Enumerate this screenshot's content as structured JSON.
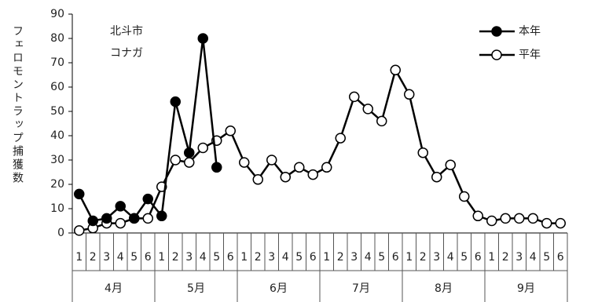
{
  "chart_data": {
    "type": "line",
    "annotations": [
      "北斗市",
      "コナガ"
    ],
    "y_label": "フェロモントラップ捕獲数",
    "categories": [
      "1",
      "2",
      "3",
      "4",
      "5",
      "6",
      "1",
      "2",
      "3",
      "4",
      "5",
      "6",
      "1",
      "2",
      "3",
      "4",
      "5",
      "6",
      "1",
      "2",
      "3",
      "4",
      "5",
      "6",
      "1",
      "2",
      "3",
      "4",
      "5",
      "6",
      "1",
      "2",
      "3",
      "4",
      "5",
      "6"
    ],
    "groups": [
      "4月",
      "5月",
      "6月",
      "7月",
      "8月",
      "9月"
    ],
    "series": [
      {
        "name": "本年",
        "color": "#000000",
        "marker": "filled",
        "values": [
          16,
          5,
          6,
          11,
          6,
          14,
          7,
          54,
          33,
          80,
          27,
          null,
          null,
          null,
          null,
          null,
          null,
          null,
          null,
          null,
          null,
          null,
          null,
          null,
          null,
          null,
          null,
          null,
          null,
          null,
          null,
          null,
          null,
          null,
          null,
          null
        ]
      },
      {
        "name": "平年",
        "color": "#000000",
        "marker": "open",
        "values": [
          1,
          2,
          4,
          4,
          6,
          6,
          19,
          30,
          29,
          35,
          38,
          42,
          29,
          22,
          30,
          23,
          27,
          24,
          27,
          39,
          56,
          51,
          46,
          67,
          57,
          33,
          23,
          28,
          15,
          7,
          5,
          6,
          6,
          6,
          4,
          4
        ]
      }
    ],
    "ylim": [
      0,
      90
    ],
    "yticks": [
      0,
      10,
      20,
      30,
      40,
      50,
      60,
      70,
      80,
      90
    ],
    "legend": "upper right"
  }
}
